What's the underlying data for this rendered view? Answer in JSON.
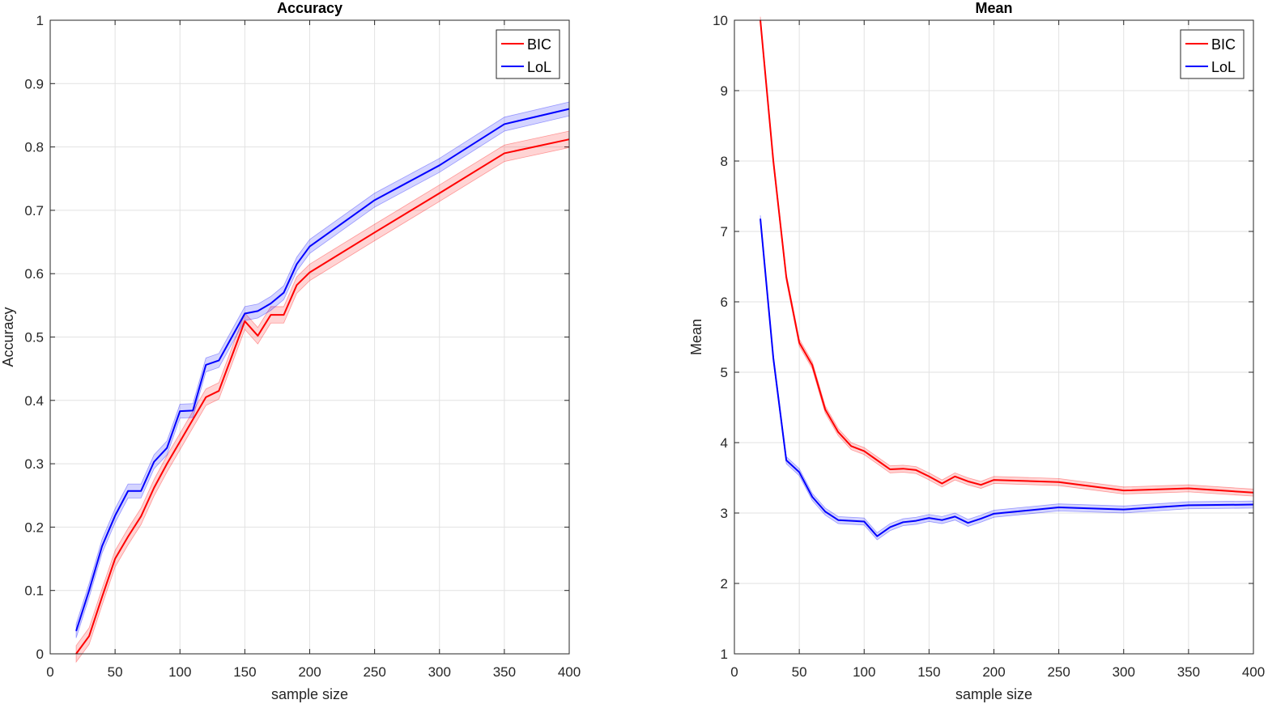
{
  "chart_data": [
    {
      "type": "line",
      "title": "Accuracy",
      "xlabel": "sample size",
      "ylabel": "Accuracy",
      "xlim": [
        0,
        400
      ],
      "ylim": [
        0,
        1
      ],
      "xticks": [
        "0",
        "50",
        "100",
        "150",
        "200",
        "250",
        "300",
        "350",
        "400"
      ],
      "yticks": [
        "0",
        "0.1",
        "0.2",
        "0.3",
        "0.4",
        "0.5",
        "0.6",
        "0.7",
        "0.8",
        "0.9",
        "1"
      ],
      "grid": true,
      "legend_position": "top-right",
      "x": [
        20,
        30,
        40,
        50,
        60,
        70,
        80,
        90,
        100,
        110,
        120,
        130,
        140,
        150,
        160,
        170,
        180,
        190,
        200,
        250,
        300,
        350,
        400
      ],
      "series": [
        {
          "name": "BIC",
          "color": "#ff0000",
          "values": [
            0.0,
            0.028,
            0.09,
            0.15,
            0.185,
            0.217,
            0.262,
            0.3,
            0.335,
            0.37,
            0.405,
            0.415,
            0.47,
            0.525,
            0.502,
            0.535,
            0.535,
            0.582,
            0.602,
            0.665,
            0.727,
            0.79,
            0.812
          ],
          "band": 0.013
        },
        {
          "name": "LoL",
          "color": "#0000ff",
          "values": [
            0.036,
            0.1,
            0.17,
            0.218,
            0.257,
            0.257,
            0.303,
            0.325,
            0.383,
            0.384,
            0.456,
            0.463,
            0.5,
            0.537,
            0.541,
            0.553,
            0.57,
            0.615,
            0.643,
            0.716,
            0.771,
            0.836,
            0.86
          ],
          "band": 0.011
        }
      ]
    },
    {
      "type": "line",
      "title": "Mean",
      "xlabel": "sample size",
      "ylabel": "Mean",
      "xlim": [
        0,
        400
      ],
      "ylim": [
        1,
        10
      ],
      "xticks": [
        "0",
        "50",
        "100",
        "150",
        "200",
        "250",
        "300",
        "350",
        "400"
      ],
      "yticks": [
        "1",
        "2",
        "3",
        "4",
        "5",
        "6",
        "7",
        "8",
        "9",
        "10"
      ],
      "grid": true,
      "legend_position": "top-right",
      "x": [
        20,
        30,
        40,
        50,
        60,
        70,
        80,
        90,
        100,
        110,
        120,
        130,
        140,
        150,
        160,
        170,
        180,
        190,
        200,
        250,
        300,
        350,
        400
      ],
      "series": [
        {
          "name": "BIC",
          "color": "#ff0000",
          "values": [
            10.0,
            8.0,
            6.35,
            5.42,
            5.1,
            4.47,
            4.15,
            3.95,
            3.88,
            3.75,
            3.62,
            3.63,
            3.61,
            3.52,
            3.42,
            3.52,
            3.45,
            3.4,
            3.47,
            3.44,
            3.32,
            3.35,
            3.29
          ],
          "band": 0.05
        },
        {
          "name": "LoL",
          "color": "#0000ff",
          "values": [
            7.18,
            5.2,
            3.75,
            3.58,
            3.23,
            3.02,
            2.9,
            2.89,
            2.88,
            2.67,
            2.8,
            2.87,
            2.89,
            2.93,
            2.9,
            2.95,
            2.86,
            2.92,
            2.99,
            3.08,
            3.05,
            3.11,
            3.12
          ],
          "band": 0.05
        }
      ]
    }
  ]
}
